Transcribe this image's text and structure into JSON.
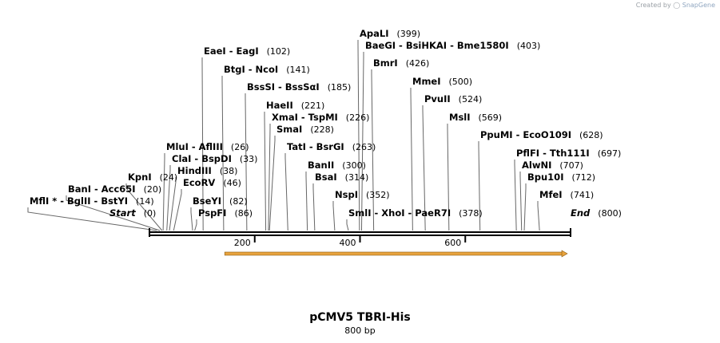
{
  "credit": {
    "prefix": "Created by",
    "brand": "SnapGene",
    "icon": "snapgene-logo-icon"
  },
  "map": {
    "title": "pCMV5 TBRI-His",
    "length_label": "800 bp",
    "length": 800,
    "ticks": [
      {
        "value": 200,
        "label": "200"
      },
      {
        "value": 400,
        "label": "400"
      },
      {
        "value": 600,
        "label": "600"
      }
    ],
    "feature": {
      "start": 143,
      "end": 800,
      "direction": "forward",
      "color": "#e8a33d"
    },
    "sites": [
      {
        "name": "ApaLI",
        "pos": "(399)",
        "site": 399
      },
      {
        "name": "BaeGI  -  BsiHKAI  -  Bme1580I",
        "pos": "(403)",
        "site": 403
      },
      {
        "name": "EaeI  -  EagI",
        "pos": "(102)",
        "site": 102
      },
      {
        "name": "BmrI",
        "pos": "(426)",
        "site": 426
      },
      {
        "name": "BtgI  -  NcoI",
        "pos": "(141)",
        "site": 141
      },
      {
        "name": "MmeI",
        "pos": "(500)",
        "site": 500
      },
      {
        "name": "BssSI  -  BssSαI",
        "pos": "(185)",
        "site": 185
      },
      {
        "name": "PvuII",
        "pos": "(524)",
        "site": 524
      },
      {
        "name": "HaeII",
        "pos": "(221)",
        "site": 221
      },
      {
        "name": "XmaI  -  TspMI",
        "pos": "(226)",
        "site": 226
      },
      {
        "name": "MslI",
        "pos": "(569)",
        "site": 569
      },
      {
        "name": "SmaI",
        "pos": "(228)",
        "site": 228
      },
      {
        "name": "PpuMI  -  EcoO109I",
        "pos": "(628)",
        "site": 628
      },
      {
        "name": "MluI  -  AflIII",
        "pos": "(26)",
        "site": 26
      },
      {
        "name": "TatI  -  BsrGI",
        "pos": "(263)",
        "site": 263
      },
      {
        "name": "ClaI  -  BspDI",
        "pos": "(33)",
        "site": 33
      },
      {
        "name": "PflFI  -  Tth111I",
        "pos": "(697)",
        "site": 697
      },
      {
        "name": "HindIII",
        "pos": "(38)",
        "site": 38
      },
      {
        "name": "BanII",
        "pos": "(300)",
        "site": 300
      },
      {
        "name": "AlwNI",
        "pos": "(707)",
        "site": 707
      },
      {
        "name": "KpnI",
        "pos": "(24)",
        "site": 24
      },
      {
        "name": "BsaI",
        "pos": "(314)",
        "site": 314
      },
      {
        "name": "Bpu10I",
        "pos": "(712)",
        "site": 712
      },
      {
        "name": "EcoRV",
        "pos": "(46)",
        "site": 46
      },
      {
        "name": "BanI  -  Acc65I",
        "pos": "(20)",
        "site": 20
      },
      {
        "name": "NspI",
        "pos": "(352)",
        "site": 352
      },
      {
        "name": "MfeI",
        "pos": "(741)",
        "site": 741
      },
      {
        "name": "MflI *  -  BglII  -  BstYI",
        "pos": "(14)",
        "site": 14
      },
      {
        "name": "BseYI",
        "pos": "(82)",
        "site": 82
      },
      {
        "name": "Start",
        "pos": "(0)",
        "site": 0,
        "italic": true
      },
      {
        "name": "PspFI",
        "pos": "(86)",
        "site": 86
      },
      {
        "name": "SmlI  -  XhoI  -  PaeR7I",
        "pos": "(378)",
        "site": 378
      },
      {
        "name": "End",
        "pos": "(800)",
        "site": 800,
        "italic": true
      }
    ]
  }
}
